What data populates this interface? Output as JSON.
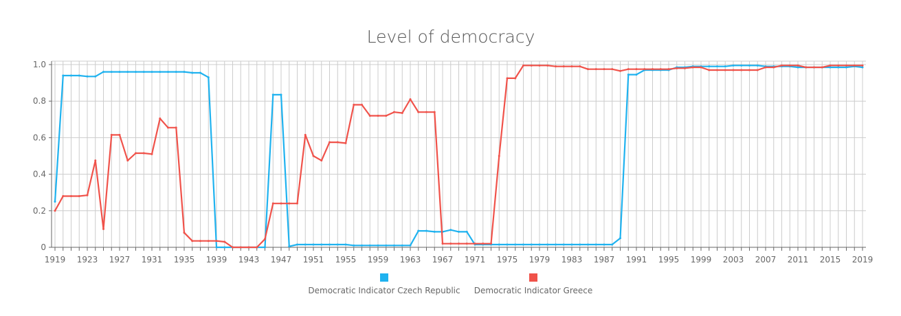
{
  "chart_data": {
    "type": "line",
    "title": "Level of democracy",
    "xlabel": "",
    "ylabel": "",
    "xlim": [
      1919,
      2019
    ],
    "ylim": [
      0,
      1.0
    ],
    "x_ticks": [
      1919,
      1923,
      1927,
      1931,
      1935,
      1939,
      1943,
      1947,
      1951,
      1955,
      1959,
      1963,
      1967,
      1971,
      1975,
      1979,
      1983,
      1987,
      1991,
      1995,
      1999,
      2003,
      2007,
      2011,
      2015,
      2019
    ],
    "y_ticks": [
      "0",
      "0.2",
      "0.4",
      "0.6",
      "0.8",
      "1.0"
    ],
    "y_tick_values": [
      0,
      0.2,
      0.4,
      0.6,
      0.8,
      1.0
    ],
    "grid": true,
    "legend_placement": "bottom-center",
    "x_start": 1919,
    "series": [
      {
        "name": "Democratic Indicator Czech Republic",
        "color": "#1fb2ef",
        "values": [
          0.25,
          0.94,
          0.94,
          0.94,
          0.935,
          0.935,
          0.96,
          0.96,
          0.96,
          0.96,
          0.96,
          0.96,
          0.96,
          0.96,
          0.96,
          0.96,
          0.96,
          0.955,
          0.955,
          0.93,
          0,
          0,
          0,
          0,
          0,
          0,
          0,
          0.835,
          0.835,
          0.005,
          0.015,
          0.015,
          0.015,
          0.015,
          0.015,
          0.015,
          0.015,
          0.01,
          0.01,
          0.01,
          0.01,
          0.01,
          0.01,
          0.01,
          0.01,
          0.09,
          0.09,
          0.085,
          0.085,
          0.095,
          0.085,
          0.085,
          0.015,
          0.015,
          0.015,
          0.015,
          0.015,
          0.015,
          0.015,
          0.015,
          0.015,
          0.015,
          0.015,
          0.015,
          0.015,
          0.015,
          0.015,
          0.015,
          0.015,
          0.015,
          0.05,
          0.945,
          0.945,
          0.97,
          0.97,
          0.97,
          0.97,
          0.985,
          0.985,
          0.99,
          0.99,
          0.99,
          0.99,
          0.99,
          0.995,
          0.995,
          0.995,
          0.995,
          0.99,
          0.99,
          0.99,
          0.99,
          0.985,
          0.985,
          0.985,
          0.985,
          0.985,
          0.985,
          0.985,
          0.99,
          0.985
        ]
      },
      {
        "name": "Democratic Indicator Greece",
        "color": "#f0524a",
        "values": [
          0.2,
          0.28,
          0.28,
          0.28,
          0.285,
          0.475,
          0.1,
          0.615,
          0.615,
          0.475,
          0.515,
          0.515,
          0.51,
          0.705,
          0.655,
          0.655,
          0.08,
          0.035,
          0.035,
          0.035,
          0.035,
          0.03,
          0,
          0,
          0,
          0,
          0.045,
          0.24,
          0.24,
          0.24,
          0.24,
          0.615,
          0.5,
          0.475,
          0.575,
          0.575,
          0.57,
          0.78,
          0.78,
          0.72,
          0.72,
          0.72,
          0.74,
          0.735,
          0.81,
          0.74,
          0.74,
          0.74,
          0.02,
          0.02,
          0.02,
          0.02,
          0.02,
          0.02,
          0.02,
          0.5,
          0.925,
          0.925,
          0.995,
          0.995,
          0.995,
          0.995,
          0.99,
          0.99,
          0.99,
          0.99,
          0.975,
          0.975,
          0.975,
          0.975,
          0.965,
          0.975,
          0.975,
          0.975,
          0.975,
          0.975,
          0.975,
          0.98,
          0.98,
          0.985,
          0.985,
          0.97,
          0.97,
          0.97,
          0.97,
          0.97,
          0.97,
          0.97,
          0.985,
          0.985,
          0.995,
          0.995,
          0.995,
          0.985,
          0.985,
          0.985,
          0.995,
          0.995,
          0.995,
          0.995,
          0.995
        ]
      }
    ]
  }
}
